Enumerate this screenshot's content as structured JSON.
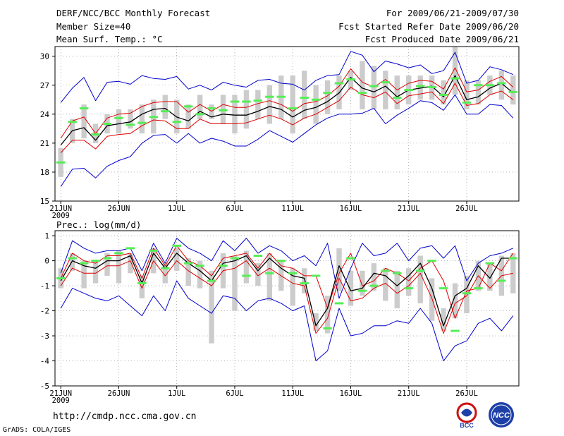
{
  "header": {
    "title": "DERF/NCC/BCC Monthly Forecast",
    "member_size": "Member Size=40",
    "variable_label": "Mean Surf. Temp.: °C",
    "forecast_period": "For 2009/06/21-2009/07/30",
    "refer_date": "Fcst Started Refer Date 2009/06/20",
    "produced_date": "Fcst Produced Date 2009/06/21"
  },
  "footer": {
    "url": "http://cmdp.ncc.cma.gov.cn",
    "grads_credit": "GrADS: COLA/IGES",
    "logo_bcc_text": "BCC",
    "logo_ncc_text": "NCC"
  },
  "colors": {
    "max_min": "#0000cc",
    "spread": "#dd0000",
    "mean": "#000000",
    "box": "#cccccc",
    "obs": "#55ee55"
  },
  "chart_data": [
    {
      "type": "line",
      "title": "Mean Surf. Temp.: °C",
      "xlabel": "",
      "ylabel": "°C",
      "ylim": [
        15,
        31
      ],
      "yticks": [
        15,
        18,
        21,
        24,
        27,
        30
      ],
      "grid": true,
      "x_tick_labels": [
        "21JUN",
        "26JUN",
        "1JUL",
        "6JUL",
        "11JUL",
        "16JUL",
        "21JUL",
        "26JUL"
      ],
      "x_tick_days": [
        0,
        5,
        10,
        15,
        20,
        25,
        30,
        35
      ],
      "x_sublabel": "2009",
      "days": 40,
      "series": [
        {
          "name": "max",
          "values": [
            25.2,
            26.7,
            27.8,
            25.4,
            27.3,
            27.4,
            27.1,
            28.0,
            27.7,
            27.6,
            27.9,
            26.6,
            27.0,
            26.5,
            27.3,
            27.0,
            26.8,
            27.5,
            27.6,
            27.2,
            27.1,
            26.5,
            27.5,
            28.0,
            28.1,
            30.5,
            30.1,
            28.4,
            29.5,
            29.2,
            28.8,
            29.1,
            28.2,
            28.5,
            30.4,
            27.2,
            27.5,
            28.9,
            28.6,
            28.1
          ]
        },
        {
          "name": "spread_upper",
          "values": [
            21.5,
            23.3,
            23.7,
            22.0,
            23.6,
            24.0,
            24.1,
            24.8,
            25.2,
            25.3,
            25.3,
            24.2,
            25.0,
            24.3,
            25.0,
            24.7,
            24.7,
            25.1,
            25.4,
            25.0,
            24.3,
            25.1,
            25.3,
            25.9,
            26.9,
            28.7,
            27.3,
            26.8,
            27.6,
            26.5,
            27.2,
            27.5,
            27.4,
            26.6,
            28.8,
            26.3,
            26.5,
            27.4,
            27.9,
            26.8
          ]
        },
        {
          "name": "mean",
          "values": [
            20.8,
            22.3,
            22.6,
            21.3,
            22.8,
            23.0,
            23.2,
            24.0,
            24.5,
            24.6,
            23.7,
            23.3,
            24.3,
            23.7,
            24.0,
            23.9,
            23.9,
            24.3,
            24.8,
            24.5,
            23.7,
            24.4,
            24.7,
            25.3,
            26.2,
            27.8,
            26.7,
            26.3,
            26.9,
            25.8,
            26.5,
            26.7,
            26.9,
            25.8,
            28.0,
            25.5,
            25.8,
            26.7,
            27.2,
            26.2
          ]
        },
        {
          "name": "spread_lower",
          "values": [
            20.0,
            21.3,
            21.3,
            20.4,
            21.7,
            21.9,
            22.0,
            22.8,
            23.4,
            23.3,
            22.5,
            22.5,
            23.5,
            23.0,
            23.0,
            23.0,
            23.1,
            23.5,
            23.9,
            23.5,
            22.9,
            23.6,
            24.0,
            24.7,
            25.4,
            26.8,
            26.0,
            25.7,
            26.3,
            25.1,
            25.9,
            26.1,
            26.3,
            25.1,
            27.2,
            24.9,
            25.1,
            26.0,
            26.4,
            25.5
          ]
        },
        {
          "name": "min",
          "values": [
            16.5,
            18.3,
            18.4,
            17.4,
            18.6,
            19.2,
            19.6,
            21.0,
            21.8,
            21.9,
            21.0,
            22.0,
            21.0,
            21.5,
            21.2,
            20.7,
            20.7,
            21.4,
            22.3,
            21.7,
            21.1,
            22.0,
            22.9,
            23.6,
            24.0,
            24.0,
            24.1,
            24.6,
            23.0,
            23.9,
            24.6,
            25.4,
            25.2,
            24.4,
            26.0,
            24.0,
            24.0,
            25.0,
            24.9,
            23.6
          ]
        },
        {
          "name": "box_top",
          "values": [
            20.5,
            23.5,
            25.0,
            23.0,
            24.0,
            24.5,
            24.5,
            25.0,
            25.5,
            26.0,
            25.5,
            25.0,
            26.0,
            25.0,
            26.0,
            26.0,
            26.5,
            26.5,
            27.0,
            28.0,
            28.0,
            28.5,
            27.0,
            27.5,
            28.0,
            28.5,
            29.5,
            29.0,
            28.5,
            28.0,
            28.0,
            28.0,
            28.0,
            27.5,
            31.0,
            27.5,
            27.5,
            28.0,
            28.5,
            28.0
          ]
        },
        {
          "name": "box_bottom",
          "values": [
            17.5,
            21.0,
            21.5,
            21.0,
            22.0,
            22.0,
            22.5,
            22.0,
            22.0,
            23.5,
            22.0,
            22.5,
            23.5,
            23.5,
            23.0,
            22.0,
            22.5,
            23.5,
            23.0,
            23.5,
            22.0,
            23.5,
            23.0,
            24.0,
            24.5,
            26.5,
            24.5,
            24.5,
            24.5,
            24.5,
            25.0,
            25.5,
            25.5,
            25.0,
            26.0,
            24.5,
            25.0,
            26.0,
            25.5,
            25.0
          ]
        },
        {
          "name": "observed",
          "values": [
            19.0,
            23.2,
            24.6,
            21.9,
            23.0,
            23.6,
            22.9,
            23.1,
            23.7,
            24.3,
            23.2,
            24.8,
            24.0,
            24.6,
            24.4,
            25.3,
            25.3,
            25.4,
            25.8,
            25.8,
            24.6,
            25.7,
            25.5,
            26.2,
            27.2,
            27.6,
            26.2,
            26.9,
            27.3,
            25.7,
            26.5,
            26.9,
            26.8,
            26.0,
            27.7,
            25.2,
            27.0,
            27.0,
            27.2,
            26.3
          ]
        }
      ]
    },
    {
      "type": "line",
      "title": "Prec.: log(mm/d)",
      "xlabel": "",
      "ylabel": "log(mm/d)",
      "ylim": [
        -5,
        1.2
      ],
      "yticks": [
        -5,
        -4,
        -3,
        -2,
        -1,
        0,
        1
      ],
      "grid": true,
      "x_tick_labels": [
        "21JUN",
        "26JUN",
        "1JUL",
        "6JUL",
        "11JUL",
        "16JUL",
        "21JUL",
        "26JUL"
      ],
      "x_tick_days": [
        0,
        5,
        10,
        15,
        20,
        25,
        30,
        35
      ],
      "x_sublabel": "2009",
      "days": 40,
      "series": [
        {
          "name": "max",
          "values": [
            -0.5,
            0.8,
            0.5,
            0.3,
            0.4,
            0.4,
            0.5,
            -0.4,
            0.7,
            -0.1,
            0.9,
            0.5,
            0.3,
            0.0,
            0.8,
            0.4,
            0.9,
            0.3,
            0.6,
            0.4,
            0.0,
            0.2,
            -0.2,
            0.7,
            -1.5,
            -0.3,
            0.7,
            0.2,
            0.3,
            0.7,
            0.0,
            0.5,
            0.6,
            0.1,
            0.6,
            -0.8,
            -0.1,
            0.2,
            0.3,
            0.5
          ]
        },
        {
          "name": "spread_upper",
          "values": [
            -0.7,
            0.3,
            0.0,
            -0.1,
            0.2,
            0.2,
            0.3,
            -0.7,
            0.5,
            -0.2,
            0.6,
            0.0,
            -0.2,
            -0.6,
            0.1,
            0.2,
            0.3,
            -0.3,
            0.3,
            -0.2,
            -0.3,
            -0.6,
            -0.6,
            -1.9,
            -0.5,
            0.3,
            -1.0,
            -0.8,
            -0.3,
            -0.5,
            -0.8,
            -0.3,
            0.0,
            -0.8,
            -2.3,
            -1.2,
            -1.1,
            -0.1,
            -0.4,
            0.3
          ]
        },
        {
          "name": "mean",
          "values": [
            -0.8,
            0.0,
            -0.2,
            -0.3,
            0.0,
            0.0,
            0.2,
            -0.9,
            0.3,
            -0.3,
            0.3,
            -0.1,
            -0.4,
            -0.8,
            -0.1,
            0.0,
            0.2,
            -0.4,
            0.1,
            -0.3,
            -0.6,
            -0.7,
            -2.6,
            -1.9,
            -0.2,
            -1.2,
            -1.1,
            -0.5,
            -0.6,
            -1.0,
            -0.6,
            -0.1,
            -1.1,
            -2.6,
            -1.4,
            -1.1,
            -0.2,
            -0.7,
            0.1,
            0.1
          ]
        },
        {
          "name": "spread_lower",
          "values": [
            -1.0,
            -0.3,
            -0.5,
            -0.5,
            -0.2,
            -0.2,
            0.0,
            -1.1,
            0.0,
            -0.6,
            0.0,
            -0.4,
            -0.7,
            -1.0,
            -0.4,
            -0.3,
            0.0,
            -0.6,
            -0.3,
            -0.6,
            -0.9,
            -1.0,
            -2.9,
            -2.3,
            -0.7,
            -1.6,
            -1.5,
            -1.1,
            -0.9,
            -1.3,
            -1.0,
            -0.5,
            -1.5,
            -2.9,
            -1.7,
            -1.4,
            -0.6,
            -1.1,
            -0.6,
            -0.5
          ]
        },
        {
          "name": "min",
          "values": [
            -1.9,
            -1.1,
            -1.3,
            -1.5,
            -1.6,
            -1.4,
            -1.8,
            -2.2,
            -1.4,
            -2.0,
            -0.8,
            -1.5,
            -1.8,
            -2.1,
            -1.4,
            -1.5,
            -2.0,
            -1.6,
            -1.5,
            -1.7,
            -2.0,
            -1.8,
            -4.0,
            -3.6,
            -1.9,
            -3.0,
            -2.9,
            -2.6,
            -2.6,
            -2.4,
            -2.5,
            -1.9,
            -2.5,
            -4.0,
            -3.4,
            -3.2,
            -2.5,
            -2.3,
            -2.8,
            -2.2
          ]
        },
        {
          "name": "box_top",
          "values": [
            -0.3,
            0.3,
            0.0,
            0.0,
            0.3,
            0.4,
            0.3,
            -0.6,
            0.5,
            -0.1,
            0.5,
            0.1,
            0.0,
            -0.4,
            0.3,
            0.2,
            0.4,
            -0.1,
            0.3,
            0.0,
            -0.3,
            -0.3,
            -2.1,
            -1.4,
            0.5,
            -0.4,
            -0.4,
            -0.1,
            -0.3,
            -0.4,
            -0.3,
            0.2,
            -0.7,
            -1.9,
            -0.9,
            -0.6,
            0.0,
            -0.1,
            0.2,
            0.3
          ]
        },
        {
          "name": "box_bottom",
          "values": [
            -1.1,
            -0.4,
            -1.1,
            -0.9,
            -0.6,
            -0.9,
            -0.5,
            -1.5,
            -0.5,
            -0.9,
            -0.4,
            -1.0,
            -1.1,
            -3.3,
            -1.1,
            -2.0,
            -0.9,
            -1.0,
            -1.6,
            -1.2,
            -1.8,
            -1.3,
            -2.8,
            -2.9,
            -1.2,
            -1.8,
            -1.4,
            -1.2,
            -1.6,
            -1.9,
            -1.4,
            -1.7,
            -2.4,
            -2.8,
            -2.3,
            -2.1,
            -1.2,
            -1.2,
            -1.4,
            -1.3
          ]
        },
        {
          "name": "observed",
          "values": [
            -0.7,
            0.1,
            -0.1,
            0.0,
            0.1,
            0.3,
            0.5,
            -0.9,
            0.4,
            -0.3,
            0.6,
            -0.1,
            -0.2,
            -0.8,
            -0.2,
            0.1,
            -0.6,
            0.2,
            -0.5,
            0.0,
            -0.5,
            -0.9,
            -0.6,
            -2.7,
            -1.7,
            0.1,
            -1.2,
            -1.0,
            -0.4,
            -0.5,
            -1.1,
            -0.4,
            0.0,
            -1.1,
            -2.8,
            -1.3,
            -1.1,
            -0.1,
            -0.8,
            0.1
          ]
        }
      ]
    }
  ]
}
